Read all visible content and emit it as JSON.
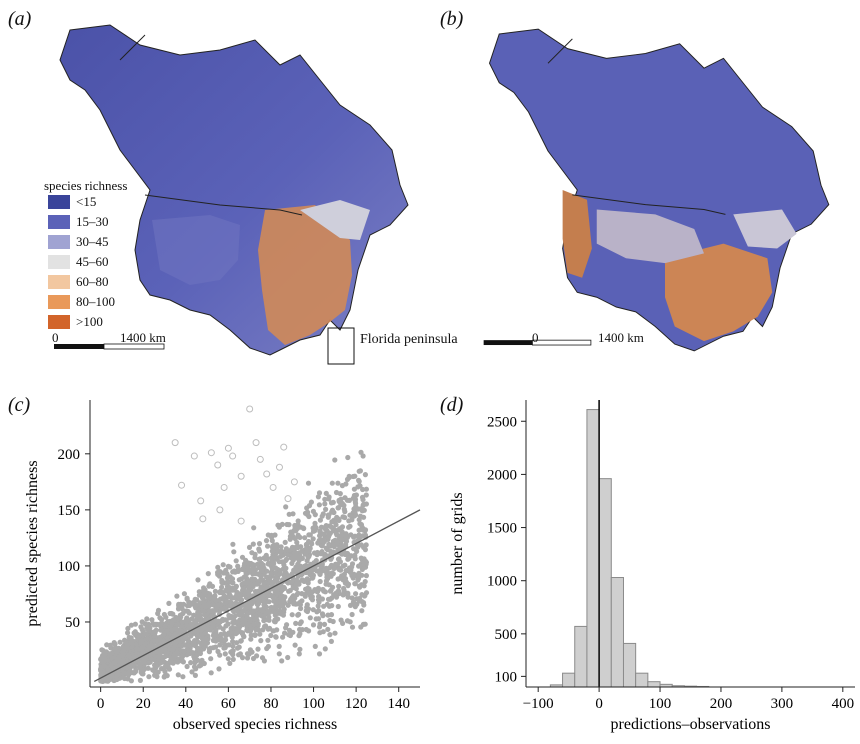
{
  "panels": {
    "a": "(a)",
    "b": "(b)",
    "c": "(c)",
    "d": "(d)"
  },
  "legend": {
    "title": "species richness",
    "items": [
      {
        "label": "<15",
        "color": "#3a449a"
      },
      {
        "label": "15–30",
        "color": "#5b62b8"
      },
      {
        "label": "30–45",
        "color": "#a0a3d2"
      },
      {
        "label": "45–60",
        "color": "#e2e2e2"
      },
      {
        "label": "60–80",
        "color": "#f2c7a0"
      },
      {
        "label": "80–100",
        "color": "#e9995a"
      },
      {
        "label": ">100",
        "color": "#d2642a"
      }
    ]
  },
  "scalebar": {
    "start": "0",
    "end": "1400 km"
  },
  "callout": "Florida peninsula",
  "chart_data": [
    {
      "type": "scatter",
      "panel": "(c)",
      "xlabel": "observed species richness",
      "ylabel": "predicted species richness",
      "xlim": [
        -5,
        150
      ],
      "ylim": [
        -8,
        248
      ],
      "xticks": [
        0,
        20,
        40,
        60,
        80,
        100,
        120,
        140
      ],
      "yticks": [
        50,
        100,
        150,
        200
      ],
      "fit_line": [
        [
          -3,
          -3
        ],
        [
          150,
          150
        ]
      ],
      "point_cloud_summary": "dense grey points spread around the 1:1 line, wider scatter at high richness",
      "open_outliers": [
        [
          35,
          210
        ],
        [
          38,
          172
        ],
        [
          44,
          198
        ],
        [
          47,
          158
        ],
        [
          52,
          201
        ],
        [
          55,
          190
        ],
        [
          58,
          170
        ],
        [
          60,
          205
        ],
        [
          62,
          198
        ],
        [
          66,
          180
        ],
        [
          70,
          240
        ],
        [
          73,
          210
        ],
        [
          75,
          195
        ],
        [
          78,
          182
        ],
        [
          81,
          170
        ],
        [
          84,
          188
        ],
        [
          86,
          206
        ],
        [
          88,
          160
        ],
        [
          91,
          175
        ],
        [
          66,
          140
        ],
        [
          48,
          142
        ],
        [
          56,
          150
        ]
      ]
    },
    {
      "type": "bar",
      "panel": "(d)",
      "xlabel": "predictions–observations",
      "ylabel": "number of grids",
      "xlim": [
        -120,
        420
      ],
      "ylim": [
        0,
        2700
      ],
      "xticks": [
        -100,
        0,
        100,
        200,
        300,
        400
      ],
      "yticks": [
        100,
        500,
        1000,
        1500,
        2000,
        2500
      ],
      "bin_width": 20,
      "bins": [
        {
          "start": -80,
          "count": 20
        },
        {
          "start": -60,
          "count": 130
        },
        {
          "start": -40,
          "count": 570
        },
        {
          "start": -20,
          "count": 2610
        },
        {
          "start": 0,
          "count": 1960
        },
        {
          "start": 20,
          "count": 1030
        },
        {
          "start": 40,
          "count": 410
        },
        {
          "start": 60,
          "count": 130
        },
        {
          "start": 80,
          "count": 50
        },
        {
          "start": 100,
          "count": 25
        },
        {
          "start": 120,
          "count": 12
        },
        {
          "start": 140,
          "count": 8
        },
        {
          "start": 160,
          "count": 5
        }
      ],
      "vline": 0
    }
  ]
}
